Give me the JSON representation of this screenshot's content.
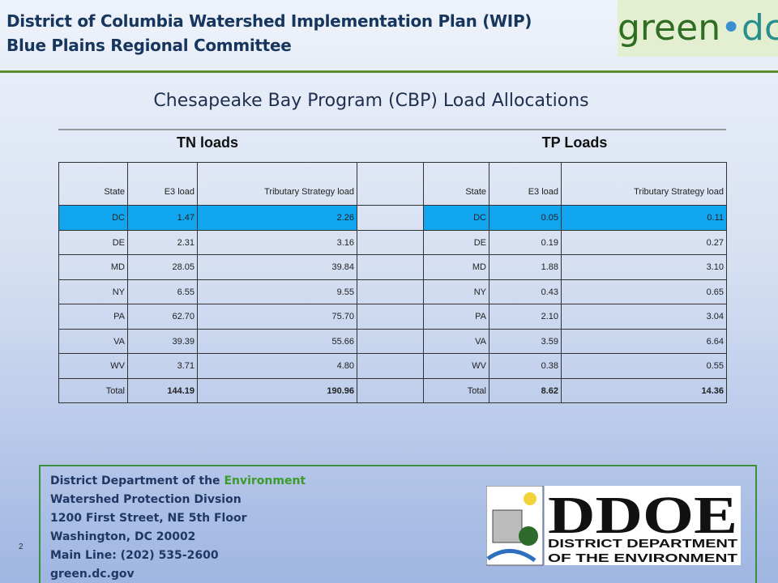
{
  "header": {
    "title_lines": [
      "District of Columbia Watershed Implementation Plan (WIP)",
      "Blue Plains Regional Committee"
    ],
    "logo": {
      "green": "green",
      "dc": "dc"
    }
  },
  "subtitle": "Chesapeake Bay Program (CBP) Load Allocations",
  "table": {
    "groups": [
      "TN loads",
      "TP Loads"
    ],
    "header": [
      "State",
      "E3 load",
      "Tributary Strategy load",
      "State",
      "E3 load",
      "Tributary Strategy load"
    ],
    "rows": [
      [
        "DC",
        "1.47",
        "2.26",
        "DC",
        "0.05",
        "0.11"
      ],
      [
        "DE",
        "2.31",
        "3.16",
        "DE",
        "0.19",
        "0.27"
      ],
      [
        "MD",
        "28.05",
        "39.84",
        "MD",
        "1.88",
        "3.10"
      ],
      [
        "NY",
        "6.55",
        "9.55",
        "NY",
        "0.43",
        "0.65"
      ],
      [
        "PA",
        "62.70",
        "75.70",
        "PA",
        "2.10",
        "3.04"
      ],
      [
        "VA",
        "39.39",
        "55.66",
        "VA",
        "3.59",
        "6.64"
      ],
      [
        "WV",
        "3.71",
        "4.80",
        "WV",
        "0.38",
        "0.55"
      ],
      [
        "Total",
        "144.19",
        "190.96",
        "Total",
        "8.62",
        "14.36"
      ]
    ]
  },
  "footer": {
    "org_prefix": "District Department of the ",
    "org_highlight": "Environment",
    "lines": [
      "Watershed Protection Divsion",
      "1200 First Street, NE 5th Floor",
      "Washington, DC 20002",
      "Main Line: (202) 535-2600",
      "green.dc.gov"
    ],
    "page_number": "2",
    "ddoe_logo": {
      "mark": "DDOE",
      "line1": "DISTRICT DEPARTMENT",
      "line2": "OF THE ENVIRONMENT"
    }
  }
}
